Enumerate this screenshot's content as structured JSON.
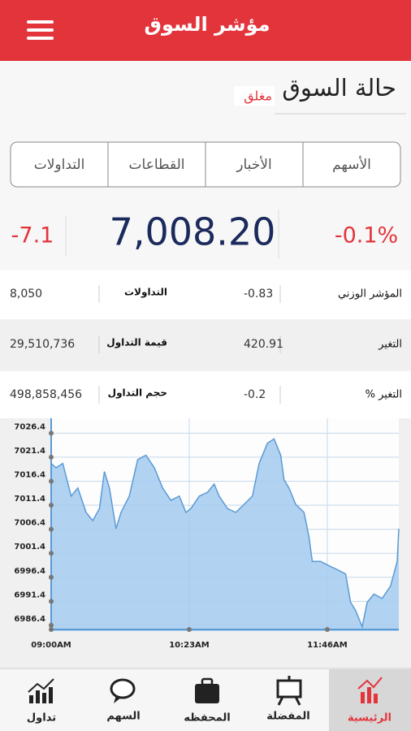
{
  "header": {
    "title": "مؤشر السوق"
  },
  "market_status": {
    "label": "حالة السوق",
    "status": "مغلق"
  },
  "tabs": [
    "الأسهم",
    "الأخبار",
    "القطاعات",
    "التداولات"
  ],
  "index": {
    "change": "-7.1",
    "value": "7,008.20",
    "change_percent": "-0.1%"
  },
  "stats": {
    "rows": [
      [
        "المؤشر الوزني",
        "-0.83",
        "التداولات",
        "8,050"
      ],
      [
        "التغير",
        "420.91",
        "قيمة التداول",
        "29,510,736"
      ],
      [
        "التغير %",
        "-0.2",
        "حجم التداول",
        "498,858,456"
      ]
    ]
  },
  "chart_data": {
    "type": "area",
    "color": "#5b9bd5",
    "fill_color": "#a8cdf0",
    "grid": true,
    "x": [
      0,
      3,
      7,
      12,
      16,
      21,
      25,
      29,
      32,
      35,
      39,
      42,
      47,
      52,
      57,
      62,
      67,
      72,
      77,
      81,
      84,
      89,
      94,
      98,
      101,
      106,
      111,
      116,
      121,
      125,
      130,
      134,
      138,
      140,
      143,
      147,
      152,
      155,
      157,
      162,
      167,
      172,
      177,
      180,
      183,
      187,
      190,
      194,
      199,
      204,
      208,
      209
    ],
    "values": [
      7020.1,
      7019.2,
      7020.1,
      7013.3,
      7015.0,
      7009.9,
      7008.2,
      7010.7,
      7018.4,
      7015.0,
      7006.5,
      7009.9,
      7013.3,
      7020.9,
      7021.8,
      7019.2,
      7015.0,
      7012.4,
      7013.3,
      7009.9,
      7010.7,
      7013.3,
      7014.1,
      7015.8,
      7013.3,
      7010.7,
      7009.9,
      7011.6,
      7013.3,
      7020.1,
      7024.3,
      7025.2,
      7021.8,
      7016.7,
      7015.0,
      7011.6,
      7009.9,
      7004.8,
      6999.7,
      6999.7,
      6998.8,
      6998.0,
      6997.1,
      6991.2,
      6989.5,
      6986.1,
      6991.2,
      6992.9,
      6992.0,
      6994.6,
      6999.7,
      7006.5
    ],
    "xlim": [
      0,
      209
    ],
    "ylim": [
      6985.2,
      7029.5
    ],
    "xticks": [
      {
        "value": 0,
        "label": "09:00AM"
      },
      {
        "value": 83,
        "label": "10:23AM"
      },
      {
        "value": 166,
        "label": "11:46AM"
      }
    ],
    "yticks": [
      6986.4,
      6991.4,
      6996.4,
      7001.4,
      7006.4,
      7011.4,
      7016.4,
      7021.4,
      7026.4
    ]
  },
  "nav": [
    "الرئيسية",
    "المفضلة",
    "المحفظه",
    "السهم",
    "تداول"
  ]
}
